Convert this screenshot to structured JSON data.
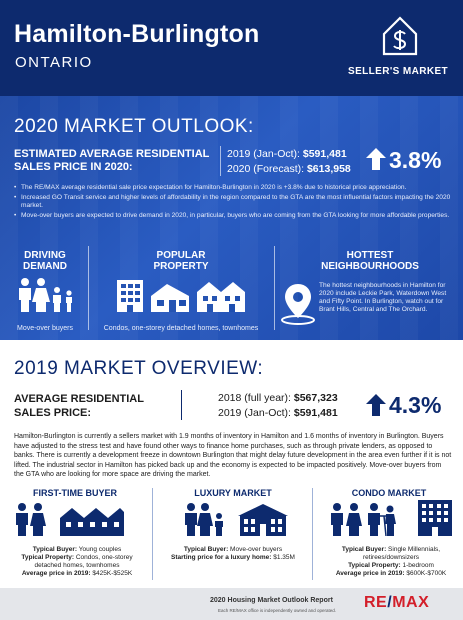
{
  "header": {
    "title": "Hamilton-Burlington",
    "subtitle": "ONTARIO",
    "badge": "SELLER'S MARKET"
  },
  "outlook": {
    "title": "2020 MARKET OUTLOOK:",
    "label_line1": "ESTIMATED AVERAGE RESIDENTIAL",
    "label_line2": "SALES PRICE IN 2020:",
    "price1_label": "2019 (Jan-Oct):",
    "price1_value": "$591,481",
    "price2_label": "2020 (Forecast):",
    "price2_value": "$613,958",
    "change": "3.8%",
    "bullets": [
      "The RE/MAX average residential sale price expectation for Hamilton-Burlington in 2020 is +3.8% due to historical price appreciation.",
      "Increased GO Transit service and higher levels of affordability in the region compared to the GTA are the most influential factors impacting the 2020 market.",
      "Move-over buyers are expected to drive demand in 2020, in particular, buyers who are coming from the GTA looking for more affordable properties."
    ],
    "driving": {
      "title_line1": "DRIVING",
      "title_line2": "DEMAND",
      "caption": "Move-over buyers"
    },
    "popular": {
      "title_line1": "POPULAR",
      "title_line2": "PROPERTY",
      "caption": "Condos, one-storey detached homes, townhomes"
    },
    "hottest": {
      "title_line1": "HOTTEST",
      "title_line2": "NEIGHBOURHOODS",
      "text": "The hottest neighbourhoods in Hamilton for 2020 include Leckie Park, Waterdown West and Fifty Point. In Burlington, watch out for Brant Hills, Central and The Orchard."
    }
  },
  "overview": {
    "title": "2019 MARKET OVERVIEW:",
    "label_line1": "AVERAGE RESIDENTIAL",
    "label_line2": "SALES PRICE:",
    "price1_label": "2018 (full year):",
    "price1_value": "$567,323",
    "price2_label": "2019 (Jan-Oct):",
    "price2_value": "$591,481",
    "change": "4.3%",
    "paragraph": "Hamilton-Burlington is currently a sellers market with 1.9 months of inventory in Hamilton and 1.6 months of inventory in Burlington. Buyers have adjusted to the stress test and have found other ways to finance home purchases, such as through private lenders, as opposed to banks. There is currently a development freeze in downtown Burlington that might delay future development in the area even further if it is not lifted. The industrial sector in Hamilton has picked back up and the economy is expected to be impacted positively. Move-over buyers from the GTA who are looking for more space are driving the market.",
    "segments": [
      {
        "title": "FIRST-TIME BUYER",
        "buyer_label": "Typical Buyer:",
        "buyer_value": "Young couples",
        "property_label": "Typical Property:",
        "property_value": "Condos, one-storey detached homes, townhomes",
        "price_label": "Average price in 2019:",
        "price_value": "$425K-$525K"
      },
      {
        "title": "LUXURY MARKET",
        "buyer_label": "Typical Buyer:",
        "buyer_value": "Move-over buyers",
        "price_label": "Starting price for a luxury home:",
        "price_value": "$1.35M"
      },
      {
        "title": "CONDO MARKET",
        "buyer_label": "Typical Buyer:",
        "buyer_value": "Single Millennials, retirees/downsizers",
        "property_label": "Typical Property:",
        "property_value": "1-bedroom",
        "price_label": "Average price in 2019:",
        "price_value": "$600K-$700K"
      }
    ]
  },
  "footer": {
    "title": "2020 Housing Market Outlook Report",
    "note": "Each RE/MAX office is independently owned and operated.",
    "brand_re": "RE",
    "brand_slash": "/",
    "brand_max": "MAX"
  },
  "colors": {
    "navy": "#0d2a6e",
    "blue": "#1f4fb0",
    "red": "#d31f2a",
    "footer": "#e4e6ea"
  }
}
